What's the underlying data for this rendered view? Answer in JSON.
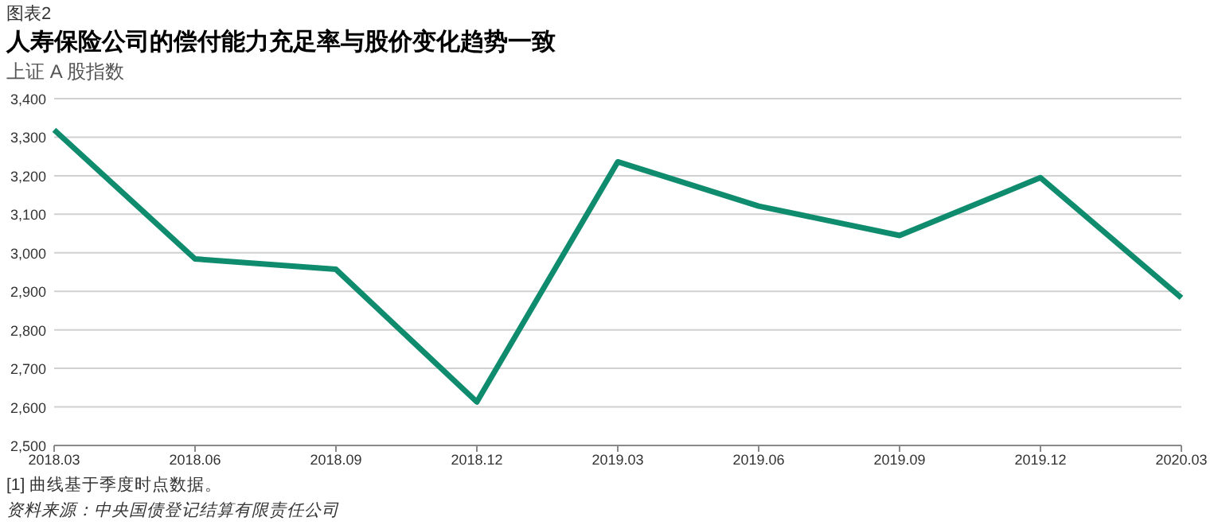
{
  "chart_data": {
    "type": "line",
    "title": "人寿保险公司的偿付能力充足率与股价变化趋势一致",
    "ylabel": "上证 A 股指数",
    "annotations": [
      "图表2",
      "[1] 曲线基于季度时点数据。",
      "资料来源：中央国债登记结算有限责任公司"
    ],
    "categories": [
      "2018.03",
      "2018.06",
      "2018.09",
      "2018.12",
      "2019.03",
      "2019.06",
      "2019.09",
      "2019.12",
      "2020.03"
    ],
    "series": [
      {
        "color": "#0f8c6e",
        "values": [
          3319,
          2984,
          2957,
          2613,
          3236,
          3121,
          3045,
          3195,
          2883
        ]
      }
    ],
    "ylim": [
      2500,
      3400
    ],
    "yticks": [
      {
        "value": 2500,
        "label": "2,500"
      },
      {
        "value": 2600,
        "label": "2,600"
      },
      {
        "value": 2700,
        "label": "2,700"
      },
      {
        "value": 2800,
        "label": "2,800"
      },
      {
        "value": 2900,
        "label": "2,900"
      },
      {
        "value": 3000,
        "label": "3,000"
      },
      {
        "value": 3100,
        "label": "3,100"
      },
      {
        "value": 3200,
        "label": "3,200"
      },
      {
        "value": 3300,
        "label": "3,300"
      },
      {
        "value": 3400,
        "label": "3,400"
      }
    ],
    "grid": "y",
    "marker": "none",
    "line_style": "solid"
  }
}
